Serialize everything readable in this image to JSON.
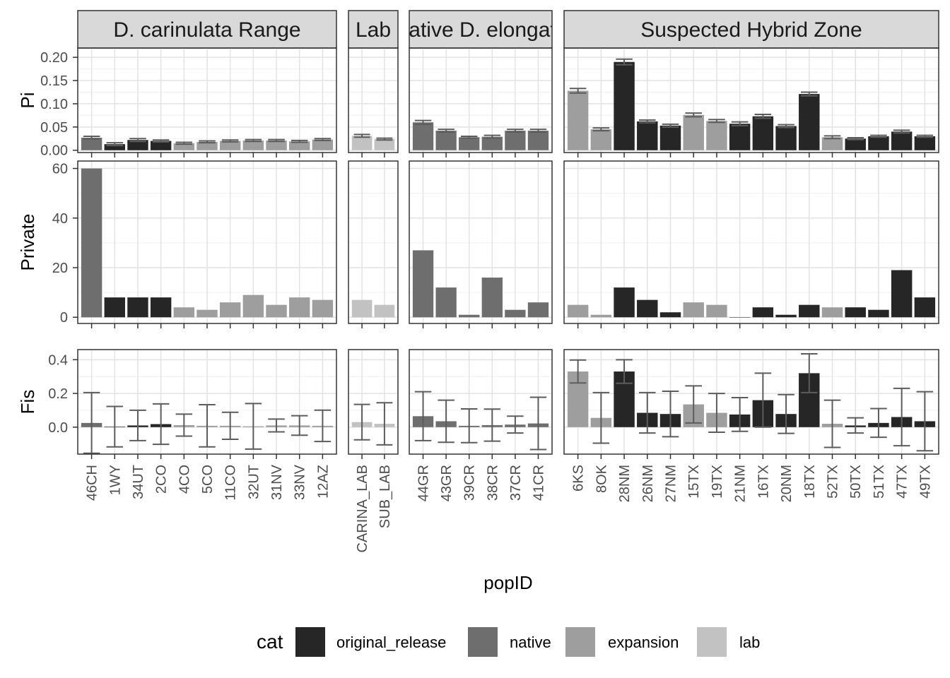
{
  "chart_data": {
    "type": "bar",
    "xlabel": "popID",
    "legend": {
      "title": "cat",
      "position": "bottom",
      "entries": [
        {
          "key": "original_release",
          "label": "original_release",
          "color": "#262626"
        },
        {
          "key": "native",
          "label": "native",
          "color": "#6e6e6e"
        },
        {
          "key": "expansion",
          "label": "expansion",
          "color": "#9e9e9e"
        },
        {
          "key": "lab",
          "label": "lab",
          "color": "#c2c2c2"
        }
      ]
    },
    "facets": [
      {
        "label": "D. carinulata Range",
        "pops": [
          "46CH",
          "1WY",
          "34UT",
          "2CO",
          "4CO",
          "5CO",
          "11CO",
          "32UT",
          "31NV",
          "33NV",
          "12AZ"
        ],
        "cat": [
          "native",
          "original_release",
          "original_release",
          "original_release",
          "expansion",
          "expansion",
          "expansion",
          "expansion",
          "expansion",
          "expansion",
          "expansion"
        ]
      },
      {
        "label": "Lab",
        "pops": [
          "CARINA_LAB",
          "SUB_LAB"
        ],
        "cat": [
          "lab",
          "lab"
        ]
      },
      {
        "label": "Native D. elongata",
        "pops": [
          "44GR",
          "43GR",
          "39CR",
          "38CR",
          "37CR",
          "41CR"
        ],
        "cat": [
          "native",
          "native",
          "native",
          "native",
          "native",
          "native"
        ]
      },
      {
        "label": "Suspected Hybrid Zone",
        "pops": [
          "6KS",
          "8OK",
          "28NM",
          "26NM",
          "27NM",
          "15TX",
          "19TX",
          "21NM",
          "16TX",
          "20NM",
          "18TX",
          "52TX",
          "50TX",
          "51TX",
          "47TX",
          "49TX"
        ],
        "cat": [
          "expansion",
          "expansion",
          "original_release",
          "original_release",
          "original_release",
          "expansion",
          "expansion",
          "original_release",
          "original_release",
          "original_release",
          "original_release",
          "expansion",
          "original_release",
          "original_release",
          "original_release",
          "original_release"
        ]
      }
    ],
    "rows": [
      {
        "ylabel": "Pi",
        "ylim": [
          -0.005,
          0.22
        ],
        "ticks": [
          0,
          0.05,
          0.1,
          0.15,
          0.2
        ],
        "tick_labels": [
          "0.00",
          "0.05",
          "0.10",
          "0.15",
          "0.20"
        ],
        "error_bars": true,
        "values": [
          [
            0.027,
            0.013,
            0.022,
            0.02,
            0.015,
            0.018,
            0.02,
            0.021,
            0.021,
            0.019,
            0.023
          ],
          [
            0.031,
            0.024
          ],
          [
            0.06,
            0.042,
            0.028,
            0.029,
            0.042,
            0.042
          ],
          [
            0.128,
            0.045,
            0.19,
            0.062,
            0.053,
            0.076,
            0.063,
            0.057,
            0.073,
            0.052,
            0.121,
            0.028,
            0.025,
            0.03,
            0.04,
            0.03
          ]
        ],
        "err": [
          [
            0.003,
            0.003,
            0.003,
            0.002,
            0.002,
            0.002,
            0.002,
            0.002,
            0.002,
            0.002,
            0.002
          ],
          [
            0.003,
            0.002
          ],
          [
            0.004,
            0.003,
            0.002,
            0.003,
            0.003,
            0.003
          ],
          [
            0.005,
            0.003,
            0.006,
            0.003,
            0.003,
            0.004,
            0.003,
            0.004,
            0.004,
            0.003,
            0.004,
            0.003,
            0.002,
            0.002,
            0.003,
            0.002
          ]
        ]
      },
      {
        "ylabel": "Private",
        "ylim": [
          -2.5,
          63
        ],
        "ticks": [
          0,
          20,
          40,
          60
        ],
        "tick_labels": [
          "0",
          "20",
          "40",
          "60"
        ],
        "error_bars": false,
        "values": [
          [
            60,
            8,
            8,
            8,
            4,
            3,
            6,
            9,
            5,
            8,
            7
          ],
          [
            7,
            5
          ],
          [
            27,
            12,
            1,
            16,
            3,
            6
          ],
          [
            5,
            1,
            12,
            7,
            2,
            6,
            5,
            0,
            4,
            1,
            5,
            4,
            4,
            3,
            19,
            8
          ]
        ]
      },
      {
        "ylabel": "Fis",
        "ylim": [
          -0.16,
          0.46
        ],
        "ticks": [
          0,
          0.2,
          0.4
        ],
        "tick_labels": [
          "0.0",
          "0.2",
          "0.4"
        ],
        "error_bars": true,
        "values": [
          [
            0.025,
            0.003,
            0.01,
            0.018,
            0.012,
            0.008,
            0.008,
            0.005,
            0.01,
            0.01,
            0.008
          ],
          [
            0.03,
            0.02
          ],
          [
            0.065,
            0.035,
            0.008,
            0.012,
            0.015,
            0.022
          ],
          [
            0.33,
            0.055,
            0.33,
            0.085,
            0.078,
            0.135,
            0.085,
            0.075,
            0.16,
            0.078,
            0.32,
            0.02,
            0.01,
            0.025,
            0.06,
            0.035
          ]
        ],
        "err": [
          [
            0.18,
            0.12,
            0.09,
            0.12,
            0.065,
            0.125,
            0.08,
            0.135,
            0.038,
            0.058,
            0.093
          ],
          [
            0.105,
            0.125
          ],
          [
            0.145,
            0.125,
            0.1,
            0.095,
            0.05,
            0.155
          ],
          [
            0.068,
            0.15,
            0.07,
            0.12,
            0.135,
            0.11,
            0.115,
            0.1,
            0.16,
            0.115,
            0.115,
            0.14,
            0.045,
            0.085,
            0.17,
            0.175
          ]
        ]
      }
    ]
  }
}
